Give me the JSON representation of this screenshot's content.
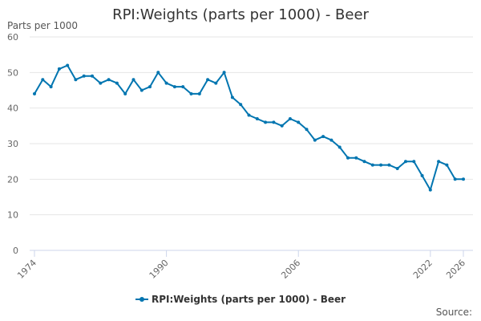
{
  "chart_data": {
    "type": "line",
    "title": "RPI:Weights (parts per 1000) - Beer",
    "ylabel": "Parts per 1000",
    "xlabel": "",
    "ylim": [
      0,
      60
    ],
    "y_ticks": [
      0,
      10,
      20,
      30,
      40,
      50,
      60
    ],
    "xlim": [
      1974,
      2026
    ],
    "x_ticks": [
      1974,
      1990,
      2006,
      2022,
      2026
    ],
    "x_tick_labels": [
      "1974",
      "1990",
      "2006",
      "2022",
      "2026"
    ],
    "grid": true,
    "legend_position": "bottom",
    "series": [
      {
        "name": "RPI:Weights (parts per 1000) - Beer",
        "color": "#0075b0",
        "x": [
          1974,
          1975,
          1976,
          1977,
          1978,
          1979,
          1980,
          1981,
          1982,
          1983,
          1984,
          1985,
          1986,
          1987,
          1988,
          1989,
          1990,
          1991,
          1992,
          1993,
          1994,
          1995,
          1996,
          1997,
          1998,
          1999,
          2000,
          2001,
          2002,
          2003,
          2004,
          2005,
          2006,
          2007,
          2008,
          2009,
          2010,
          2011,
          2012,
          2013,
          2014,
          2015,
          2016,
          2017,
          2018,
          2019,
          2020,
          2021,
          2022,
          2023,
          2024,
          2025,
          2026
        ],
        "values": [
          44,
          48,
          46,
          51,
          52,
          48,
          49,
          49,
          47,
          48,
          47,
          44,
          48,
          45,
          46,
          50,
          47,
          46,
          46,
          44,
          44,
          48,
          47,
          50,
          43,
          41,
          38,
          37,
          36,
          36,
          35,
          37,
          36,
          34,
          31,
          32,
          31,
          29,
          26,
          26,
          25,
          24,
          24,
          24,
          23,
          25,
          25,
          21,
          17,
          25,
          24,
          20,
          20
        ]
      }
    ]
  },
  "legend": {
    "label": "RPI:Weights (parts per 1000) - Beer"
  },
  "footer": {
    "source_label": "Source:"
  }
}
